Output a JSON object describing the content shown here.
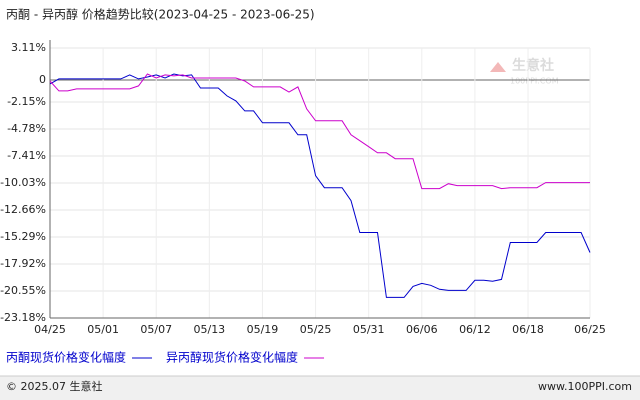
{
  "title": "丙酮 - 异丙醇 价格趋势比较(2023-04-25 - 2023-06-25)",
  "watermark": {
    "brand": "生意社",
    "site": "100PPI.COM"
  },
  "footer": {
    "copyright": "© 2025.07 生意社",
    "url": "www.100PPI.com"
  },
  "chart_data": {
    "type": "line",
    "categories": [
      "04/25",
      null,
      null,
      null,
      null,
      null,
      "05/01",
      null,
      null,
      null,
      null,
      null,
      "05/07",
      null,
      null,
      null,
      null,
      null,
      "05/13",
      null,
      null,
      null,
      null,
      null,
      "05/19",
      null,
      null,
      null,
      null,
      null,
      "05/25",
      null,
      null,
      null,
      null,
      null,
      "05/31",
      null,
      null,
      null,
      null,
      null,
      "06/06",
      null,
      null,
      null,
      null,
      null,
      "06/12",
      null,
      null,
      null,
      null,
      null,
      "06/18",
      null,
      null,
      null,
      null,
      null,
      null,
      "06/25"
    ],
    "series": [
      {
        "name": "丙酮现货价格变化幅度",
        "color": "#0000cc",
        "values": [
          -0.39,
          0.1,
          0.1,
          0.1,
          0.1,
          0.1,
          0.1,
          0.1,
          0.1,
          0.49,
          0.1,
          0.29,
          0.49,
          0.19,
          0.58,
          0.39,
          0.49,
          -0.78,
          -0.78,
          -0.78,
          -1.55,
          -2.04,
          -3.01,
          -3.01,
          -4.17,
          -4.17,
          -4.17,
          -4.17,
          -5.34,
          -5.34,
          -9.32,
          -10.49,
          -10.49,
          -10.49,
          -11.75,
          -14.85,
          -14.85,
          -14.85,
          -21.17,
          -21.17,
          -21.17,
          -20.1,
          -19.81,
          -20,
          -20.39,
          -20.49,
          -20.49,
          -20.49,
          -19.51,
          -19.51,
          -19.61,
          -19.42,
          -15.83,
          -15.83,
          -15.83,
          -15.83,
          -14.85,
          -14.85,
          -14.85,
          -14.85,
          -14.85,
          -16.8
        ]
      },
      {
        "name": "异丙醇现货价格变化幅度",
        "color": "#cc00cc",
        "values": [
          -0.1,
          -1.07,
          -1.07,
          -0.87,
          -0.87,
          -0.87,
          -0.87,
          -0.87,
          -0.87,
          -0.87,
          -0.58,
          0.58,
          0.19,
          0.49,
          0.39,
          0.49,
          0.19,
          0.19,
          0.19,
          0.19,
          0.19,
          0.19,
          -0.1,
          -0.68,
          -0.68,
          -0.68,
          -0.68,
          -1.17,
          -0.68,
          -2.82,
          -3.98,
          -3.98,
          -3.98,
          -3.98,
          -5.34,
          -5.92,
          -6.5,
          -7.09,
          -7.09,
          -7.67,
          -7.67,
          -7.67,
          -10.58,
          -10.58,
          -10.58,
          -10.1,
          -10.29,
          -10.29,
          -10.29,
          -10.29,
          -10.29,
          -10.58,
          -10.49,
          -10.49,
          -10.49,
          -10.49,
          -10,
          -10,
          -10,
          -10,
          -10,
          -10
        ]
      }
    ],
    "ylim": [
      -23.18,
      3.11
    ],
    "yticks": [
      {
        "value": 3.11,
        "label": "3.11%"
      },
      0,
      {
        "value": -2.15,
        "label": "-2.15%"
      },
      {
        "value": -4.78,
        "label": "-4.78%"
      },
      {
        "value": -7.41,
        "label": "-7.41%"
      },
      {
        "value": -10.03,
        "label": "-10.03%"
      },
      {
        "value": -12.66,
        "label": "-12.66%"
      },
      {
        "value": -15.29,
        "label": "-15.29%"
      },
      {
        "value": -17.92,
        "label": "-17.92%"
      },
      {
        "value": -20.55,
        "label": "-20.55%"
      },
      {
        "value": -23.18,
        "label": "-23.18%"
      }
    ],
    "grid": true
  }
}
